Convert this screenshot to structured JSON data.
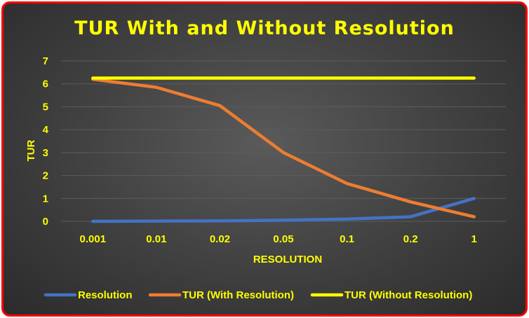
{
  "chart_data": {
    "type": "line",
    "title": "TUR With and Without Resolution",
    "xlabel": "RESOLUTION",
    "ylabel": "TUR",
    "categories": [
      "0.001",
      "0.01",
      "0.02",
      "0.05",
      "0.1",
      "0.2",
      "1"
    ],
    "ylim": [
      0,
      7
    ],
    "yticks": [
      "0",
      "1",
      "2",
      "3",
      "4",
      "5",
      "6",
      "7"
    ],
    "grid": true,
    "legend_position": "bottom",
    "series": [
      {
        "name": "Resolution",
        "color": "#4472c4",
        "values": [
          0.001,
          0.01,
          0.02,
          0.05,
          0.1,
          0.2,
          1
        ]
      },
      {
        "name": "TUR (With Resolution)",
        "color": "#ed7d31",
        "values": [
          6.2,
          5.85,
          5.05,
          3.0,
          1.65,
          0.85,
          0.2
        ]
      },
      {
        "name": "TUR (Without Resolution)",
        "color": "#ffff00",
        "values": [
          6.25,
          6.25,
          6.25,
          6.25,
          6.25,
          6.25,
          6.25
        ]
      }
    ]
  },
  "colors": {
    "frame_border": "#ff0000",
    "text": "#ffff00",
    "gridline": "#5c5c5c"
  }
}
